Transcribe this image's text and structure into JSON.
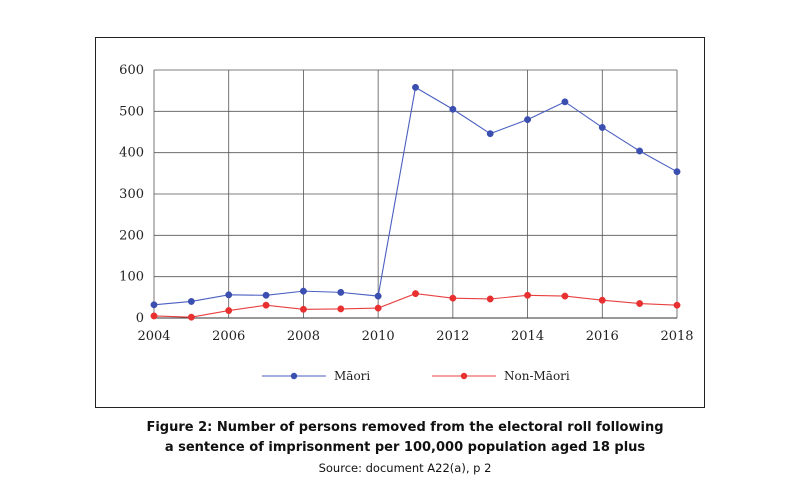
{
  "chart_data": {
    "type": "line",
    "title": "",
    "xlabel": "",
    "ylabel": "",
    "x": [
      2004,
      2005,
      2006,
      2007,
      2008,
      2009,
      2010,
      2011,
      2012,
      2013,
      2014,
      2015,
      2016,
      2017,
      2018
    ],
    "x_tick_labels": [
      "2004",
      "2006",
      "2008",
      "2010",
      "2012",
      "2014",
      "2016",
      "2018"
    ],
    "x_ticks": [
      2004,
      2006,
      2008,
      2010,
      2012,
      2014,
      2016,
      2018
    ],
    "xlim": [
      2004,
      2018
    ],
    "y_tick_labels": [
      "0",
      "100",
      "200",
      "300",
      "400",
      "500",
      "600"
    ],
    "y_ticks": [
      0,
      100,
      200,
      300,
      400,
      500,
      600
    ],
    "ylim": [
      0,
      600
    ],
    "grid": true,
    "legend_position": "bottom",
    "series": [
      {
        "name": "Māori",
        "color": "#3a4fb0",
        "line_color": "#4a5fc0",
        "values": [
          32,
          40,
          56,
          55,
          65,
          62,
          53,
          558,
          505,
          446,
          480,
          523,
          461,
          404,
          354
        ]
      },
      {
        "name": "Non-Māori",
        "color": "#e83030",
        "line_color": "#e84040",
        "values": [
          5,
          2,
          18,
          31,
          21,
          22,
          24,
          59,
          48,
          46,
          55,
          53,
          43,
          35,
          31
        ]
      }
    ]
  },
  "caption": {
    "line1": "Figure 2: Number of persons removed from the electoral roll following",
    "line2": "a sentence of imprisonment per 100,000 population aged 18 plus",
    "source": "Source: document A22(a), p 2"
  }
}
